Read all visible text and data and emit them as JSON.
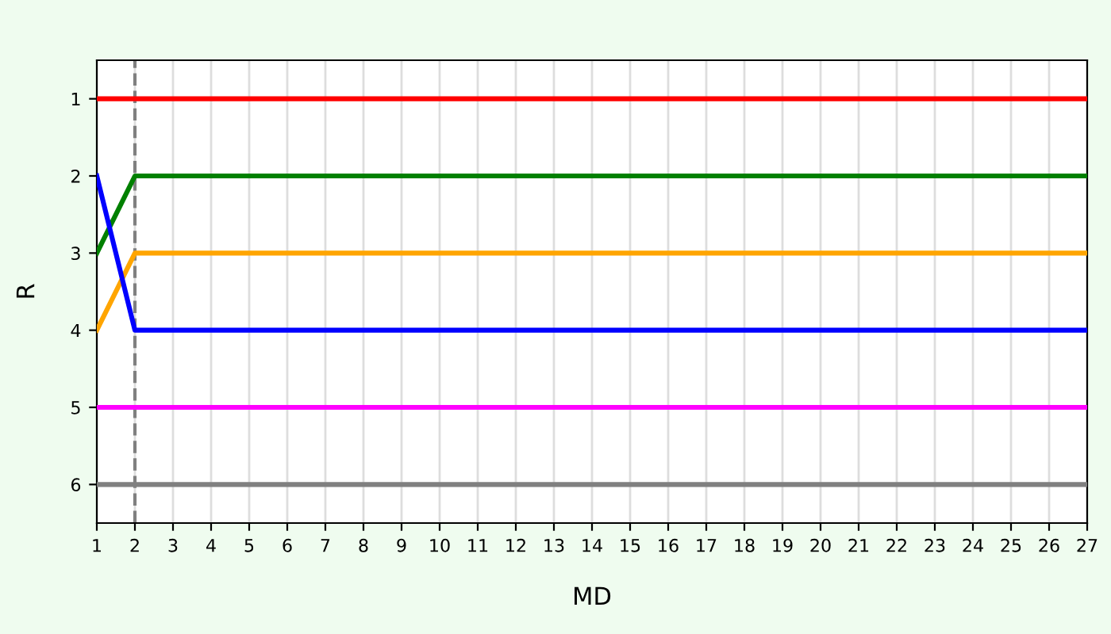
{
  "chart_data": {
    "type": "line",
    "xlabel": "MD",
    "ylabel": "R",
    "x": [
      1,
      2,
      3,
      4,
      5,
      6,
      7,
      8,
      9,
      10,
      11,
      12,
      13,
      14,
      15,
      16,
      17,
      18,
      19,
      20,
      21,
      22,
      23,
      24,
      25,
      26,
      27
    ],
    "series": [
      {
        "color": "#ff0000",
        "values": [
          1,
          1,
          1,
          1,
          1,
          1,
          1,
          1,
          1,
          1,
          1,
          1,
          1,
          1,
          1,
          1,
          1,
          1,
          1,
          1,
          1,
          1,
          1,
          1,
          1,
          1,
          1
        ]
      },
      {
        "color": "#008000",
        "values": [
          3,
          2,
          2,
          2,
          2,
          2,
          2,
          2,
          2,
          2,
          2,
          2,
          2,
          2,
          2,
          2,
          2,
          2,
          2,
          2,
          2,
          2,
          2,
          2,
          2,
          2,
          2
        ]
      },
      {
        "color": "#ffa500",
        "values": [
          4,
          3,
          3,
          3,
          3,
          3,
          3,
          3,
          3,
          3,
          3,
          3,
          3,
          3,
          3,
          3,
          3,
          3,
          3,
          3,
          3,
          3,
          3,
          3,
          3,
          3,
          3
        ]
      },
      {
        "color": "#0000ff",
        "values": [
          2,
          4,
          4,
          4,
          4,
          4,
          4,
          4,
          4,
          4,
          4,
          4,
          4,
          4,
          4,
          4,
          4,
          4,
          4,
          4,
          4,
          4,
          4,
          4,
          4,
          4,
          4
        ]
      },
      {
        "color": "#ff00ff",
        "values": [
          5,
          5,
          5,
          5,
          5,
          5,
          5,
          5,
          5,
          5,
          5,
          5,
          5,
          5,
          5,
          5,
          5,
          5,
          5,
          5,
          5,
          5,
          5,
          5,
          5,
          5,
          5
        ]
      },
      {
        "color": "#808080",
        "values": [
          6,
          6,
          6,
          6,
          6,
          6,
          6,
          6,
          6,
          6,
          6,
          6,
          6,
          6,
          6,
          6,
          6,
          6,
          6,
          6,
          6,
          6,
          6,
          6,
          6,
          6,
          6
        ]
      }
    ],
    "xlim": [
      1,
      27
    ],
    "xticks": [
      1,
      2,
      3,
      4,
      5,
      6,
      7,
      8,
      9,
      10,
      11,
      12,
      13,
      14,
      15,
      16,
      17,
      18,
      19,
      20,
      21,
      22,
      23,
      24,
      25,
      26,
      27
    ],
    "ylim": [
      6.5,
      0.5
    ],
    "yticks": [
      1,
      2,
      3,
      4,
      5,
      6
    ],
    "ref_lines": [
      {
        "axis": "x",
        "value": 2,
        "color": "#808080",
        "line_style": "dashed"
      }
    ],
    "grid": "x",
    "marker": "none",
    "line_style": "solid"
  }
}
